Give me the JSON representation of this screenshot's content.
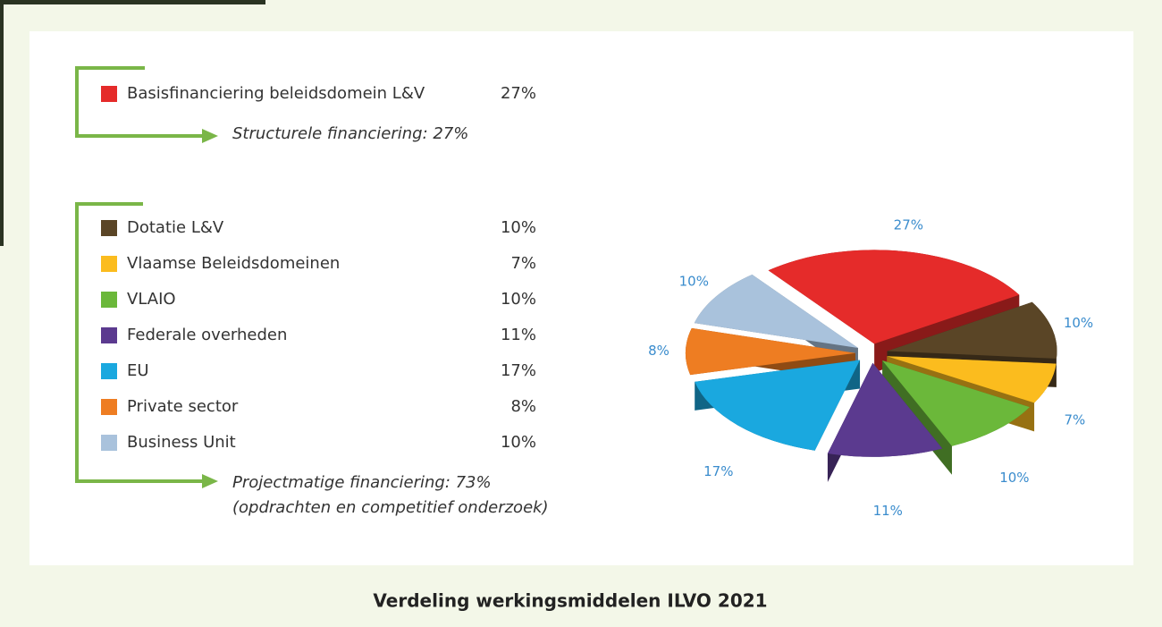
{
  "chart_data": {
    "type": "pie",
    "title": "Verdeling werkingsmiddelen ILVO 2021",
    "categories": [
      "Basisfinanciering beleidsdomein L&V",
      "Dotatie L&V",
      "Vlaamse Beleidsdomeinen",
      "VLAIO",
      "Federale overheden",
      "EU",
      "Private sector",
      "Business Unit"
    ],
    "values": [
      27,
      10,
      7,
      10,
      11,
      17,
      8,
      10
    ],
    "value_labels": [
      "27%",
      "10%",
      "7%",
      "10%",
      "11%",
      "17%",
      "8%",
      "10%"
    ],
    "colors": [
      "#e52b2a",
      "#5a4526",
      "#fbbc1e",
      "#6bb83a",
      "#5b3a8f",
      "#1aa8df",
      "#ee7d22",
      "#a9c2dc"
    ],
    "annotations": [
      "Structurele financiering: 27%",
      "Projectmatige financiering: 73%",
      "(opdrachten en competitief onderzoek)"
    ]
  }
}
